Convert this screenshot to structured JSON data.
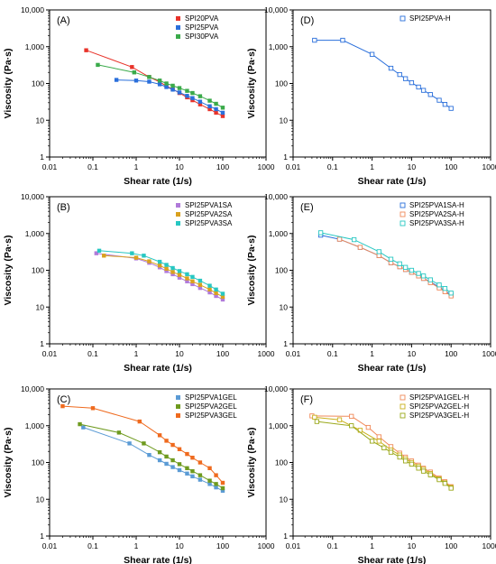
{
  "colors": {
    "red": "#e8332a",
    "blue": "#2a6fdb",
    "green": "#3aaa4a",
    "purple": "#b07ad9",
    "gold": "#d9a11e",
    "cyan": "#27c7c2",
    "lightblue": "#5b9bd5",
    "olive": "#6e9a1e",
    "orange": "#ef6a1e",
    "h_orange": "#f08a5a",
    "h_yellow": "#c9b01a",
    "h_olive": "#9aa81a"
  },
  "chart_data": [
    {
      "panel": "(A)",
      "type": "scatter",
      "xscale": "log",
      "yscale": "log",
      "xlabel": "Shear rate (1/s)",
      "ylabel": "Viscosity (Pa·s)",
      "xlim": [
        0.01,
        1000
      ],
      "ylim": [
        1,
        10000
      ],
      "xticks": [
        "0.01",
        "0.1",
        "1",
        "10",
        "100",
        "1000"
      ],
      "yticks": [
        "1",
        "10",
        "100",
        "1,000",
        "10,000"
      ],
      "legend_position": "top-right",
      "series": [
        {
          "name": "SPI20PVA",
          "color": "red",
          "marker": "filled-square",
          "x": [
            0.07,
            0.8,
            2.0,
            3.5,
            5,
            7,
            10,
            15,
            20,
            30,
            50,
            70,
            100
          ],
          "y": [
            800,
            280,
            150,
            110,
            85,
            70,
            55,
            42,
            35,
            27,
            20,
            16,
            13
          ]
        },
        {
          "name": "SPI25PVA",
          "color": "blue",
          "marker": "filled-square",
          "x": [
            0.35,
            1.0,
            2.0,
            3.5,
            5,
            7,
            10,
            15,
            20,
            30,
            50,
            70,
            100
          ],
          "y": [
            125,
            120,
            112,
            95,
            80,
            68,
            57,
            46,
            40,
            32,
            24,
            20,
            16
          ]
        },
        {
          "name": "SPI30PVA",
          "color": "green",
          "marker": "filled-square",
          "x": [
            0.13,
            0.9,
            2.0,
            3.5,
            5,
            7,
            10,
            15,
            20,
            30,
            50,
            70,
            100
          ],
          "y": [
            320,
            200,
            150,
            120,
            100,
            87,
            75,
            63,
            55,
            45,
            34,
            28,
            22
          ]
        }
      ]
    },
    {
      "panel": "(D)",
      "type": "scatter",
      "xscale": "log",
      "yscale": "log",
      "xlabel": "Shear rate (1/s)",
      "ylabel": "Viscosity (Pa·s)",
      "xlim": [
        0.01,
        1000
      ],
      "ylim": [
        1,
        10000
      ],
      "xticks": [
        "0.01",
        "0.1",
        "1",
        "10",
        "100",
        "1000"
      ],
      "yticks": [
        "1",
        "10",
        "100",
        "1,000",
        "10,000"
      ],
      "legend_position": "top-right",
      "series": [
        {
          "name": "SPI25PVA-H",
          "color": "blue",
          "marker": "open-square",
          "x": [
            0.035,
            0.18,
            1.0,
            3.0,
            5,
            7,
            10,
            15,
            20,
            30,
            50,
            70,
            100
          ],
          "y": [
            1500,
            1500,
            620,
            260,
            175,
            135,
            105,
            80,
            65,
            50,
            35,
            27,
            21
          ]
        }
      ]
    },
    {
      "panel": "(B)",
      "type": "scatter",
      "xscale": "log",
      "yscale": "log",
      "xlabel": "Shear rate (1/s)",
      "ylabel": "Viscosity (Pa·s)",
      "xlim": [
        0.01,
        1000
      ],
      "ylim": [
        1,
        10000
      ],
      "xticks": [
        "0.01",
        "0.1",
        "1",
        "10",
        "100",
        "1000"
      ],
      "yticks": [
        "1",
        "10",
        "100",
        "1,000",
        "10,000"
      ],
      "legend_position": "top-right",
      "series": [
        {
          "name": "SPI25PVA1SA",
          "color": "purple",
          "marker": "filled-square",
          "x": [
            0.12,
            1.0,
            2.0,
            3.5,
            5,
            7,
            10,
            15,
            20,
            30,
            50,
            70,
            100
          ],
          "y": [
            290,
            210,
            160,
            120,
            95,
            78,
            63,
            50,
            42,
            33,
            25,
            20,
            16
          ]
        },
        {
          "name": "SPI25PVA2SA",
          "color": "gold",
          "marker": "filled-square",
          "x": [
            0.18,
            1.0,
            2.0,
            3.5,
            5,
            7,
            10,
            15,
            20,
            30,
            50,
            70,
            100
          ],
          "y": [
            250,
            220,
            175,
            135,
            110,
            90,
            75,
            60,
            50,
            40,
            30,
            24,
            19
          ]
        },
        {
          "name": "SPI25PVA3SA",
          "color": "cyan",
          "marker": "filled-square",
          "x": [
            0.14,
            0.8,
            1.5,
            3.5,
            5,
            7,
            10,
            15,
            20,
            30,
            50,
            70,
            100
          ],
          "y": [
            340,
            290,
            250,
            170,
            140,
            115,
            95,
            78,
            66,
            52,
            38,
            30,
            23
          ]
        }
      ]
    },
    {
      "panel": "(E)",
      "type": "scatter",
      "xscale": "log",
      "yscale": "log",
      "xlabel": "Shear rate (1/s)",
      "ylabel": "Viscosity (Pa·s)",
      "xlim": [
        0.01,
        1000
      ],
      "ylim": [
        1,
        10000
      ],
      "xticks": [
        "0.01",
        "0.1",
        "1",
        "10",
        "100",
        "1000"
      ],
      "yticks": [
        "1",
        "10",
        "100",
        "1,000",
        "10,000"
      ],
      "legend_position": "top-right",
      "series": [
        {
          "name": "SPI25PVA1SA-H",
          "color": "blue",
          "marker": "open-square",
          "x": [
            0.05,
            0.15,
            0.5,
            1.5,
            3,
            5,
            7,
            10,
            15,
            20,
            30,
            50,
            70,
            100
          ],
          "y": [
            900,
            700,
            420,
            250,
            160,
            125,
            105,
            88,
            70,
            60,
            48,
            35,
            28,
            21
          ]
        },
        {
          "name": "SPI25PVA2SA-H",
          "color": "h_orange",
          "marker": "open-square",
          "x": [
            0.15,
            0.5,
            1.5,
            3,
            5,
            7,
            10,
            15,
            20,
            30,
            50,
            70,
            100
          ],
          "y": [
            700,
            420,
            250,
            160,
            125,
            105,
            88,
            70,
            60,
            46,
            33,
            26,
            20
          ]
        },
        {
          "name": "SPI25PVA3SA-H",
          "color": "cyan",
          "marker": "open-square",
          "x": [
            0.05,
            0.35,
            1.5,
            3,
            5,
            7,
            10,
            15,
            20,
            30,
            50,
            70,
            100
          ],
          "y": [
            1050,
            680,
            320,
            200,
            150,
            120,
            100,
            82,
            70,
            55,
            40,
            32,
            24
          ]
        }
      ]
    },
    {
      "panel": "(C)",
      "type": "scatter",
      "xscale": "log",
      "yscale": "log",
      "xlabel": "Shear rate (1/s)",
      "ylabel": "Viscosity (Pa·s)",
      "xlim": [
        0.01,
        1000
      ],
      "ylim": [
        1,
        10000
      ],
      "xticks": [
        "0.01",
        "0.1",
        "1",
        "10",
        "100",
        "1000"
      ],
      "yticks": [
        "1",
        "10",
        "100",
        "1,000",
        "10,000"
      ],
      "legend_position": "top-right",
      "series": [
        {
          "name": "SPI25PVA1GEL",
          "color": "lightblue",
          "marker": "filled-square",
          "x": [
            0.06,
            0.7,
            2.0,
            3.5,
            5,
            7,
            10,
            15,
            20,
            30,
            50,
            70,
            100
          ],
          "y": [
            900,
            330,
            160,
            115,
            92,
            75,
            62,
            50,
            42,
            34,
            26,
            21,
            17
          ]
        },
        {
          "name": "SPI25PVA2GEL",
          "color": "olive",
          "marker": "filled-square",
          "x": [
            0.05,
            0.4,
            1.5,
            3.5,
            5,
            7,
            10,
            15,
            20,
            30,
            50,
            70,
            100
          ],
          "y": [
            1100,
            650,
            330,
            190,
            145,
            115,
            90,
            70,
            58,
            45,
            32,
            26,
            20
          ]
        },
        {
          "name": "SPI25PVA3GEL",
          "color": "orange",
          "marker": "filled-square",
          "x": [
            0.02,
            0.1,
            1.2,
            3.5,
            5,
            7,
            10,
            15,
            20,
            30,
            50,
            70,
            100
          ],
          "y": [
            3400,
            3000,
            1300,
            550,
            390,
            300,
            230,
            170,
            135,
            100,
            70,
            45,
            28
          ]
        }
      ]
    },
    {
      "panel": "(F)",
      "type": "scatter",
      "xscale": "log",
      "yscale": "log",
      "xlabel": "Shear rate (1/s)",
      "ylabel": "Viscosity (Pa·s)",
      "xlim": [
        0.01,
        1000
      ],
      "ylim": [
        1,
        10000
      ],
      "xticks": [
        "0.01",
        "0.1",
        "1",
        "10",
        "100",
        "1000"
      ],
      "yticks": [
        "1",
        "10",
        "100",
        "1,000",
        "10,000"
      ],
      "legend_position": "top-right",
      "series": [
        {
          "name": "SPI25PVA1GEL-H",
          "color": "h_orange",
          "marker": "open-square",
          "x": [
            0.03,
            0.3,
            0.8,
            1.5,
            3,
            5,
            7,
            10,
            15,
            20,
            30,
            50,
            70,
            100
          ],
          "y": [
            1850,
            1800,
            900,
            500,
            270,
            180,
            140,
            110,
            85,
            70,
            55,
            38,
            30,
            22
          ]
        },
        {
          "name": "SPI25PVA2GEL-H",
          "color": "h_yellow",
          "marker": "open-square",
          "x": [
            0.035,
            0.15,
            0.5,
            1.5,
            3,
            5,
            7,
            10,
            15,
            20,
            30,
            50,
            70,
            100
          ],
          "y": [
            1700,
            1450,
            750,
            380,
            220,
            160,
            125,
            100,
            78,
            65,
            50,
            36,
            28,
            21
          ]
        },
        {
          "name": "SPI25PVA3GEL-H",
          "color": "h_olive",
          "marker": "open-square",
          "x": [
            0.04,
            0.3,
            1.0,
            2.0,
            3,
            5,
            7,
            10,
            15,
            20,
            30,
            50,
            70,
            100
          ],
          "y": [
            1300,
            1000,
            380,
            250,
            190,
            140,
            110,
            90,
            70,
            58,
            46,
            34,
            27,
            20
          ]
        }
      ]
    }
  ]
}
